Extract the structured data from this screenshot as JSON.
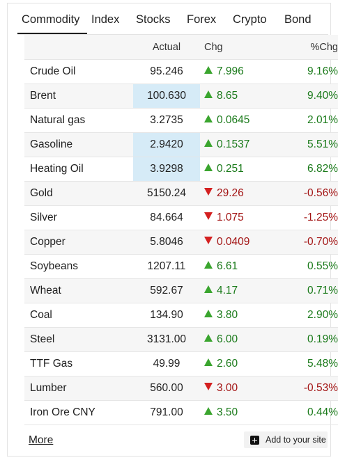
{
  "tabs": [
    "Commodity",
    "Index",
    "Stocks",
    "Forex",
    "Crypto",
    "Bond"
  ],
  "active_tab": "Commodity",
  "columns": {
    "name": "",
    "actual": "Actual",
    "chg": "Chg",
    "pct": "%Chg"
  },
  "rows": [
    {
      "name": "Crude Oil",
      "actual": "95.246",
      "chg": "7.996",
      "pct": "9.16%",
      "dir": "up",
      "highlight": false
    },
    {
      "name": "Brent",
      "actual": "100.630",
      "chg": "8.65",
      "pct": "9.40%",
      "dir": "up",
      "highlight": true
    },
    {
      "name": "Natural gas",
      "actual": "3.2735",
      "chg": "0.0645",
      "pct": "2.01%",
      "dir": "up",
      "highlight": false
    },
    {
      "name": "Gasoline",
      "actual": "2.9420",
      "chg": "0.1537",
      "pct": "5.51%",
      "dir": "up",
      "highlight": true
    },
    {
      "name": "Heating Oil",
      "actual": "3.9298",
      "chg": "0.251",
      "pct": "6.82%",
      "dir": "up",
      "highlight": true
    },
    {
      "name": "Gold",
      "actual": "5150.24",
      "chg": "29.26",
      "pct": "-0.56%",
      "dir": "down",
      "highlight": false
    },
    {
      "name": "Silver",
      "actual": "84.664",
      "chg": "1.075",
      "pct": "-1.25%",
      "dir": "down",
      "highlight": false
    },
    {
      "name": "Copper",
      "actual": "5.8046",
      "chg": "0.0409",
      "pct": "-0.70%",
      "dir": "down",
      "highlight": false
    },
    {
      "name": "Soybeans",
      "actual": "1207.11",
      "chg": "6.61",
      "pct": "0.55%",
      "dir": "up",
      "highlight": false
    },
    {
      "name": "Wheat",
      "actual": "592.67",
      "chg": "4.17",
      "pct": "0.71%",
      "dir": "up",
      "highlight": false
    },
    {
      "name": "Coal",
      "actual": "134.90",
      "chg": "3.80",
      "pct": "2.90%",
      "dir": "up",
      "highlight": false
    },
    {
      "name": "Steel",
      "actual": "3131.00",
      "chg": "6.00",
      "pct": "0.19%",
      "dir": "up",
      "highlight": false
    },
    {
      "name": "TTF Gas",
      "actual": "49.99",
      "chg": "2.60",
      "pct": "5.48%",
      "dir": "up",
      "highlight": false
    },
    {
      "name": "Lumber",
      "actual": "560.00",
      "chg": "3.00",
      "pct": "-0.53%",
      "dir": "down",
      "highlight": false
    },
    {
      "name": "Iron Ore CNY",
      "actual": "791.00",
      "chg": "3.50",
      "pct": "0.44%",
      "dir": "up",
      "highlight": false
    }
  ],
  "footer": {
    "more_label": "More",
    "add_label": "Add to your site"
  },
  "colors": {
    "up": "#1a7a1a",
    "down": "#a31414",
    "highlight": "#d6ebf7"
  }
}
